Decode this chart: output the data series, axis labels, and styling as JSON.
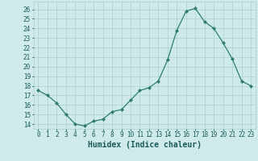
{
  "x": [
    0,
    1,
    2,
    3,
    4,
    5,
    6,
    7,
    8,
    9,
    10,
    11,
    12,
    13,
    14,
    15,
    16,
    17,
    18,
    19,
    20,
    21,
    22,
    23
  ],
  "y": [
    17.5,
    17.0,
    16.2,
    15.0,
    14.0,
    13.8,
    14.3,
    14.5,
    15.3,
    15.5,
    16.5,
    17.5,
    17.8,
    18.5,
    20.7,
    23.8,
    25.8,
    26.1,
    24.7,
    24.0,
    22.5,
    20.8,
    18.5,
    18.0
  ],
  "xlabel": "Humidex (Indice chaleur)",
  "ylim": [
    13.5,
    26.8
  ],
  "xlim": [
    -0.5,
    23.5
  ],
  "yticks": [
    14,
    15,
    16,
    17,
    18,
    19,
    20,
    21,
    22,
    23,
    24,
    25,
    26
  ],
  "xticks": [
    0,
    1,
    2,
    3,
    4,
    5,
    6,
    7,
    8,
    9,
    10,
    11,
    12,
    13,
    14,
    15,
    16,
    17,
    18,
    19,
    20,
    21,
    22,
    23
  ],
  "line_color": "#2e7d6e",
  "marker_color": "#2e7d6e",
  "bg_color": "#ceeaea",
  "grid_color": "#aed0d0",
  "tick_label_color": "#1a5a5a",
  "xlabel_color": "#1a5a5a",
  "tick_fontsize": 5.5,
  "xlabel_fontsize": 7.0
}
